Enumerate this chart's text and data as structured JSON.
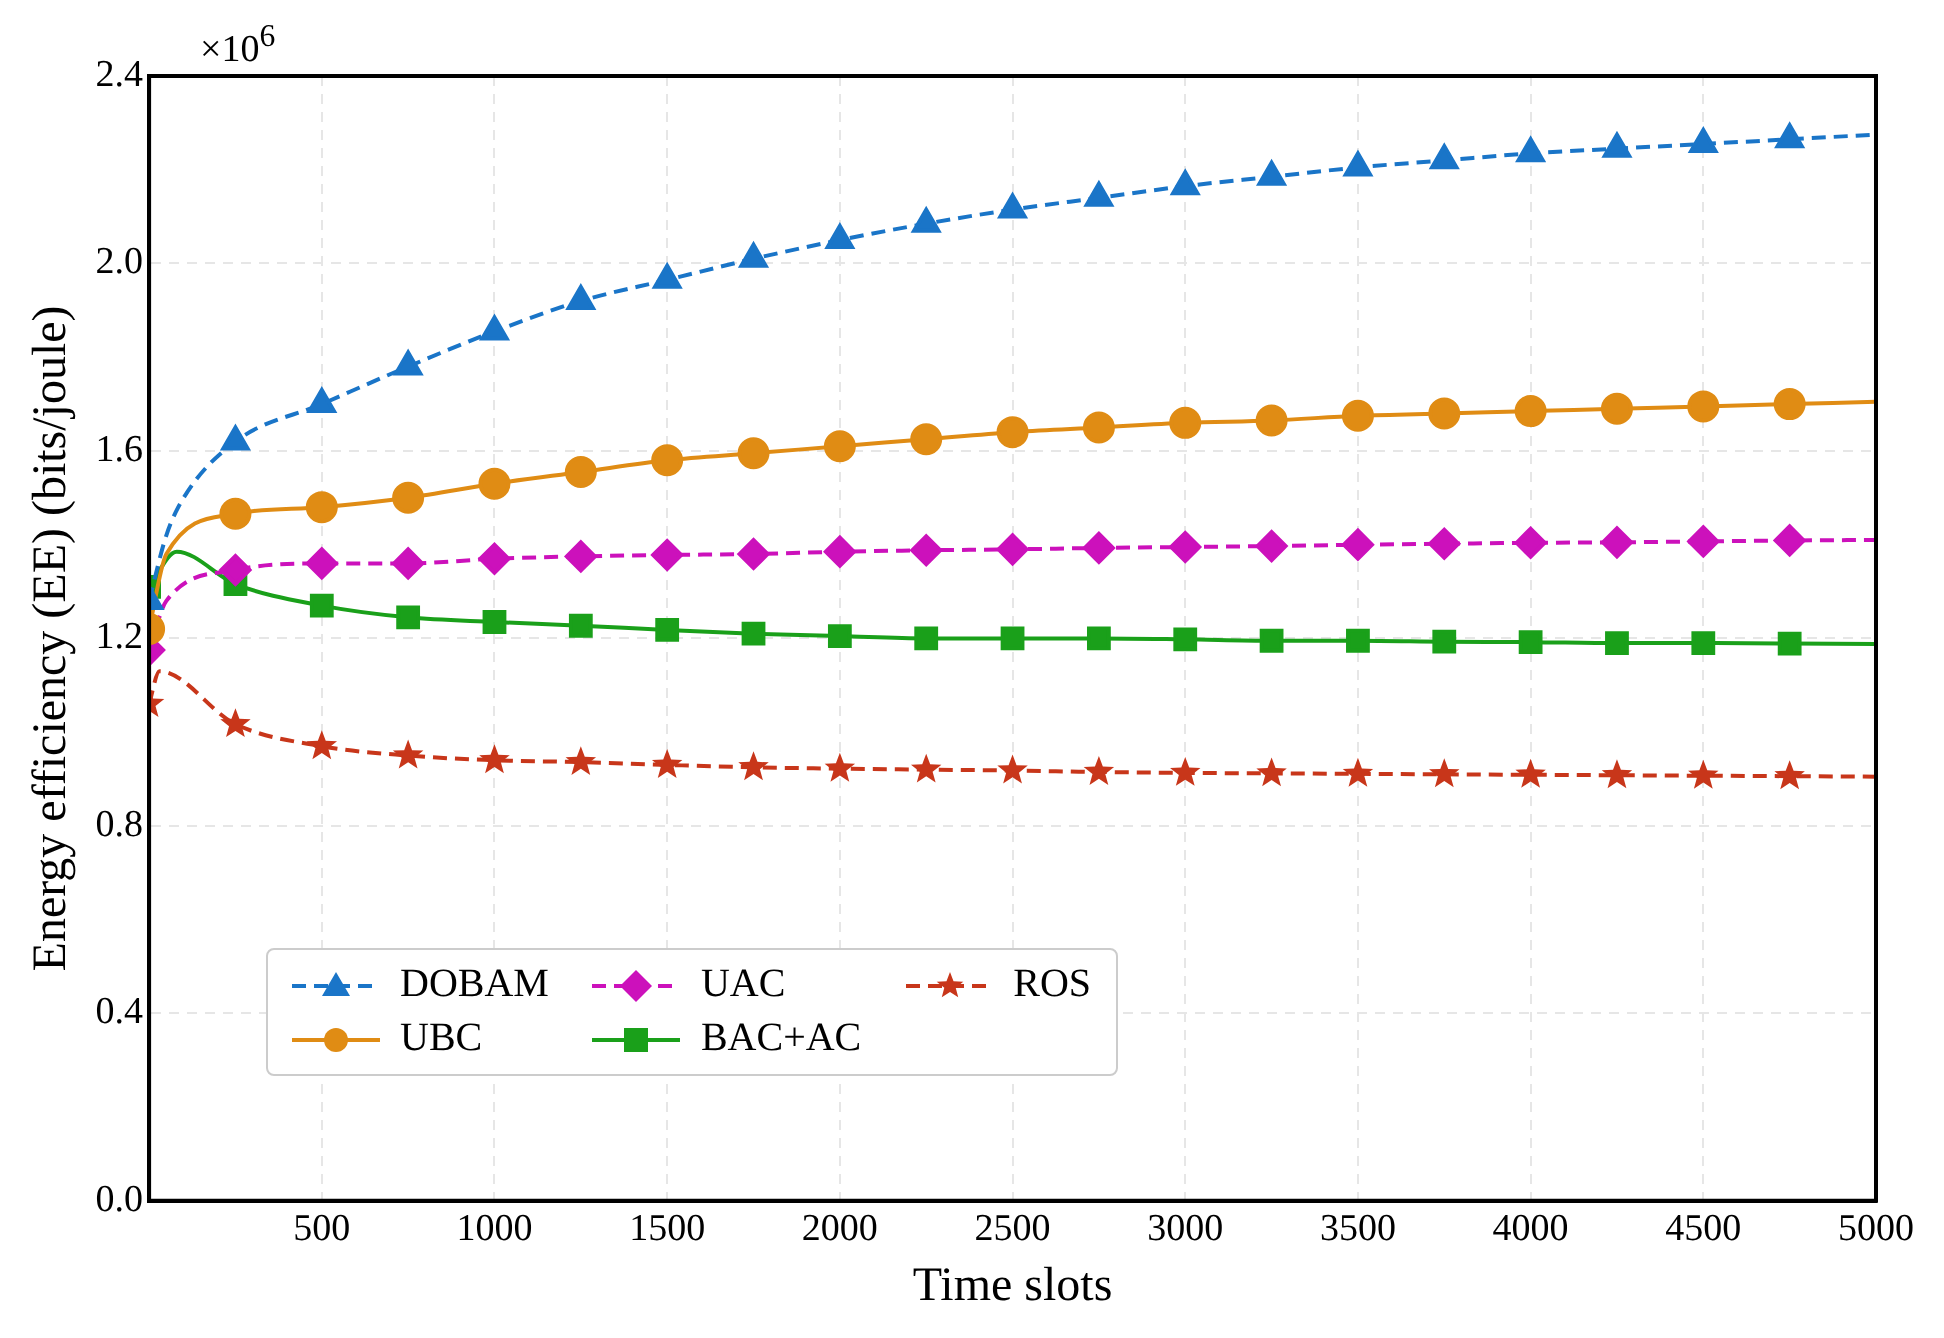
{
  "chart_data": {
    "type": "line",
    "xlabel": "Time slots",
    "ylabel": "Energy efficiency (EE) (bits/joule)",
    "annotations": [
      "×10$^{6}$"
    ],
    "xlim": [
      0,
      5000
    ],
    "xticks": [
      500,
      1000,
      1500,
      2000,
      2500,
      3000,
      3500,
      4000,
      4500,
      5000
    ],
    "ylim": [
      0,
      2.4
    ],
    "yticks": [
      {
        "value": 0,
        "label": "0.0"
      },
      {
        "value": 0.4,
        "label": "0.4"
      },
      {
        "value": 0.8,
        "label": "0.8"
      },
      {
        "value": 1.2,
        "label": "1.2"
      },
      {
        "value": 1.6,
        "label": "1.6"
      },
      {
        "value": 2.0,
        "label": "2.0"
      },
      {
        "value": 2.4,
        "label": "2.4"
      }
    ],
    "grid": true,
    "legend": "bottom left",
    "series": [
      {
        "name": "DOBAM",
        "color": "#1a75c8",
        "marker": "triangle",
        "line_style": "dashed",
        "x": [
          0,
          50,
          100,
          250,
          500,
          750,
          1000,
          1250,
          1500,
          1750,
          2000,
          2250,
          2500,
          2750,
          3000,
          3250,
          3500,
          3750,
          4000,
          4250,
          4500,
          4750,
          5000
        ],
        "values": [
          1.28,
          1.42,
          1.5,
          1.62,
          1.7,
          1.78,
          1.855,
          1.92,
          1.965,
          2.01,
          2.05,
          2.085,
          2.115,
          2.14,
          2.165,
          2.185,
          2.205,
          2.22,
          2.235,
          2.245,
          2.255,
          2.265,
          2.275
        ]
      },
      {
        "name": "UBC",
        "color": "#e08c14",
        "marker": "circle",
        "line_style": "solid",
        "x": [
          0,
          50,
          250,
          500,
          750,
          1000,
          1250,
          1500,
          1750,
          2000,
          2250,
          2500,
          2750,
          3000,
          3250,
          3500,
          3750,
          4000,
          4250,
          4500,
          4750,
          5000
        ],
        "values": [
          1.22,
          1.38,
          1.466,
          1.48,
          1.5,
          1.53,
          1.555,
          1.58,
          1.595,
          1.61,
          1.625,
          1.64,
          1.65,
          1.66,
          1.665,
          1.675,
          1.68,
          1.685,
          1.69,
          1.695,
          1.7,
          1.705
        ]
      },
      {
        "name": "UAC",
        "color": "#cc11bb",
        "marker": "diamond",
        "line_style": "dashed",
        "x": [
          0,
          50,
          250,
          500,
          750,
          1000,
          1250,
          1500,
          1750,
          2000,
          2250,
          2500,
          2750,
          3000,
          3250,
          3500,
          3750,
          4000,
          4250,
          4500,
          4750,
          5000
        ],
        "values": [
          1.175,
          1.28,
          1.346,
          1.36,
          1.36,
          1.37,
          1.375,
          1.378,
          1.38,
          1.385,
          1.388,
          1.39,
          1.393,
          1.395,
          1.397,
          1.4,
          1.402,
          1.404,
          1.405,
          1.407,
          1.409,
          1.41
        ]
      },
      {
        "name": "BAC+AC",
        "color": "#1aa01a",
        "marker": "square",
        "line_style": "solid",
        "x": [
          0,
          80,
          250,
          500,
          750,
          1000,
          1250,
          1500,
          1750,
          2000,
          2250,
          2500,
          2750,
          3000,
          3250,
          3500,
          3750,
          4000,
          4250,
          4500,
          4750,
          5000
        ],
        "values": [
          1.31,
          1.385,
          1.316,
          1.27,
          1.245,
          1.235,
          1.227,
          1.218,
          1.21,
          1.205,
          1.2,
          1.2,
          1.2,
          1.198,
          1.195,
          1.195,
          1.193,
          1.192,
          1.19,
          1.19,
          1.189,
          1.188
        ]
      },
      {
        "name": "ROS",
        "color": "#c8361a",
        "marker": "star",
        "line_style": "dashed",
        "x": [
          0,
          30,
          250,
          500,
          750,
          1000,
          1250,
          1500,
          1750,
          2000,
          2250,
          2500,
          2750,
          3000,
          3250,
          3500,
          3750,
          4000,
          4250,
          4500,
          4750,
          5000
        ],
        "values": [
          1.06,
          1.13,
          1.017,
          0.97,
          0.95,
          0.94,
          0.936,
          0.93,
          0.925,
          0.922,
          0.92,
          0.918,
          0.915,
          0.913,
          0.912,
          0.911,
          0.91,
          0.909,
          0.908,
          0.907,
          0.906,
          0.905
        ]
      }
    ]
  }
}
